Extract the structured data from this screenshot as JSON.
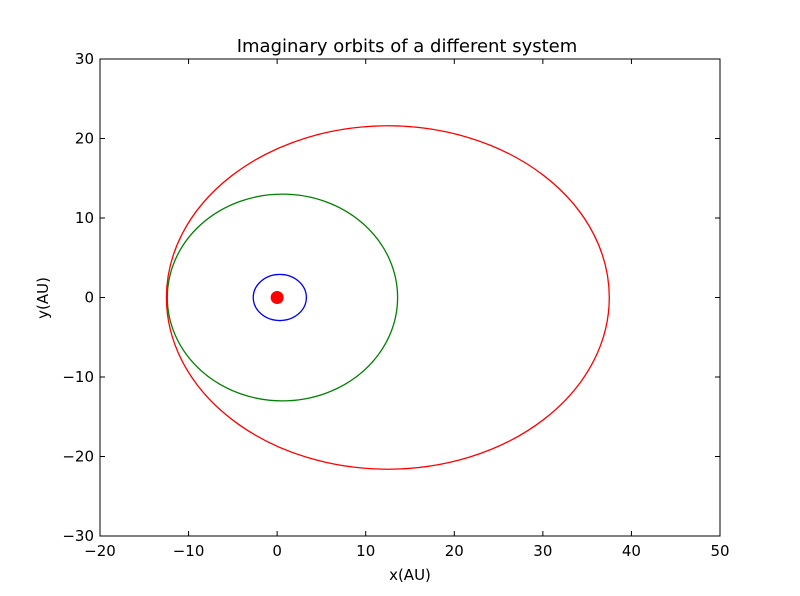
{
  "chart_data": {
    "type": "line",
    "title": "Imaginary orbits of a different system",
    "xlabel": "x(AU)",
    "ylabel": "y(AU)",
    "xlim": [
      -20,
      50
    ],
    "ylim": [
      -30,
      30
    ],
    "xticks": [
      -20,
      -10,
      0,
      10,
      20,
      30,
      40,
      50
    ],
    "yticks": [
      -30,
      -20,
      -10,
      0,
      10,
      20,
      30
    ],
    "xtick_labels": [
      "−20",
      "−10",
      "0",
      "10",
      "20",
      "30",
      "40",
      "50"
    ],
    "ytick_labels": [
      "−30",
      "−20",
      "−10",
      "0",
      "10",
      "20",
      "30"
    ],
    "grid": false,
    "series": [
      {
        "color": "#0000ff",
        "center": [
          0.3,
          0
        ],
        "semi_axes": [
          3.0,
          2.9
        ]
      },
      {
        "color": "#008000",
        "center": [
          0.6,
          0
        ],
        "semi_axes": [
          13.0,
          13.0
        ]
      },
      {
        "color": "#ff0000",
        "center": [
          12.5,
          0
        ],
        "semi_axes": [
          25.0,
          21.6
        ]
      }
    ],
    "central_body": {
      "x": 0,
      "y": 0,
      "color": "#ff0000"
    }
  }
}
